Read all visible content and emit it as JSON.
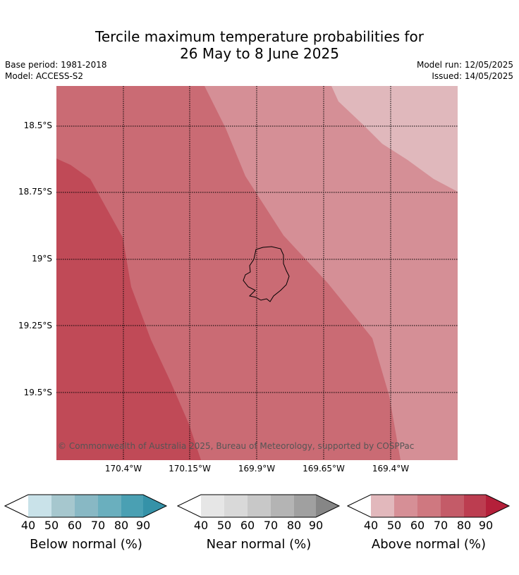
{
  "title_line1": "Tercile maximum temperature probabilities for",
  "title_line2": "26 May to 8 June 2025",
  "base_period": "Base period: 1981-2018",
  "model": "Model: ACCESS-S2",
  "model_run": "Model run: 12/05/2025",
  "issued": "Issued: 14/05/2025",
  "lat_labels": [
    "18.5°S",
    "18.75°S",
    "19°S",
    "19.25°S",
    "19.5°S"
  ],
  "lon_labels": [
    "170.4°W",
    "170.15°W",
    "169.9°W",
    "169.65°W",
    "169.4°W"
  ],
  "copyright": "© Commonwealth of Australia 2025, Bureau of Meteorology, supported by COSPPac",
  "colorbars": [
    {
      "label": "Below normal (%)",
      "ticks": [
        "40",
        "50",
        "60",
        "70",
        "80",
        "90"
      ],
      "colors": [
        "#ffffff",
        "#c9e2e9",
        "#a6c7ce",
        "#88b8c4",
        "#6aafbe",
        "#4aa0b3",
        "#3592a8"
      ]
    },
    {
      "label": "Near normal (%)",
      "ticks": [
        "40",
        "50",
        "60",
        "70",
        "80",
        "90"
      ],
      "colors": [
        "#ffffff",
        "#e6e6e6",
        "#d9d9d9",
        "#c8c8c8",
        "#b4b4b4",
        "#a0a0a0",
        "#868686"
      ]
    },
    {
      "label": "Above normal (%)",
      "ticks": [
        "40",
        "50",
        "60",
        "70",
        "80",
        "90"
      ],
      "colors": [
        "#ffffff",
        "#e2b8bc",
        "#d68f96",
        "#cf7880",
        "#c45b68",
        "#bc3d50",
        "#b4203a"
      ]
    }
  ],
  "map_colors": {
    "band_40_50": "#e0b8bc",
    "band_50_60": "#d58f96",
    "band_60_70": "#ca6b74",
    "band_70_80": "#c04a57"
  }
}
